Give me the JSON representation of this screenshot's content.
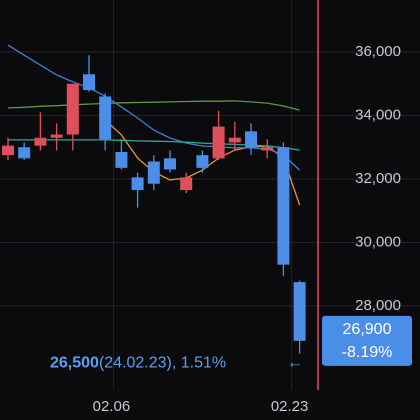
{
  "chart_data": {
    "type": "candlestick",
    "categories": [
      null,
      null,
      null,
      null,
      null,
      null,
      null,
      "02.06",
      null,
      null,
      null,
      null,
      null,
      null,
      null,
      null,
      null,
      null,
      "02.23"
    ],
    "open": [
      32750,
      33000,
      33050,
      33300,
      33400,
      35300,
      34600,
      32850,
      32050,
      32550,
      32650,
      31650,
      32750,
      32650,
      33150,
      33500,
      32900,
      33000,
      28750
    ],
    "close": [
      33050,
      32650,
      33300,
      33400,
      35000,
      34800,
      33250,
      32350,
      31650,
      31850,
      32300,
      32050,
      32350,
      33650,
      33300,
      33000,
      33000,
      29300,
      26900
    ],
    "high": [
      33300,
      33150,
      34100,
      33750,
      35000,
      35900,
      34700,
      33250,
      32200,
      32750,
      32900,
      32200,
      32900,
      34150,
      33800,
      33750,
      33250,
      33150,
      28800
    ],
    "low": [
      32600,
      32600,
      32900,
      32900,
      32900,
      34750,
      32900,
      32300,
      31100,
      31650,
      32200,
      31550,
      32200,
      32600,
      32900,
      32750,
      32650,
      28950,
      26500
    ],
    "up_color": "#e0505c",
    "down_color": "#4a8ee8",
    "moving_averages": [
      {
        "color": "#e8943a",
        "values": [
          null,
          null,
          null,
          null,
          null,
          null,
          33860,
          33390,
          32660,
          32220,
          31970,
          32030,
          32280,
          32660,
          32910,
          33010,
          33040,
          32660,
          31180
        ]
      },
      {
        "color": "#3f7fd8",
        "values": [
          36220,
          35900,
          35590,
          35280,
          35060,
          34870,
          34610,
          34270,
          33920,
          33540,
          33290,
          33130,
          33040,
          33010,
          32980,
          32980,
          32950,
          32760,
          32280
        ]
      },
      {
        "color": "#5a9a3c",
        "values": [
          34240,
          34260,
          34290,
          34310,
          34340,
          34360,
          34380,
          34400,
          34410,
          34420,
          34430,
          34440,
          34450,
          34450,
          34460,
          34430,
          34390,
          34300,
          34170
        ]
      },
      {
        "color": "#2fa89a",
        "values": [
          33230,
          33230,
          33230,
          33230,
          33230,
          33230,
          33230,
          33220,
          33200,
          33190,
          33180,
          33160,
          33130,
          33110,
          33090,
          33070,
          33040,
          32990,
          32910
        ]
      }
    ],
    "ylim": [
      25350,
      37640
    ],
    "yticks": [
      {
        "value": 28000,
        "label": "28,000"
      },
      {
        "value": 30000,
        "label": "30,000"
      },
      {
        "value": 32000,
        "label": "32,000"
      },
      {
        "value": 34000,
        "label": "34,000"
      },
      {
        "value": 36000,
        "label": "36,000"
      }
    ],
    "grid": true,
    "current": {
      "value": 26900,
      "label": "26,900",
      "change": -8.19,
      "change_label": "-8.19%"
    },
    "low_annotation": {
      "value": 26500,
      "label": "26,500",
      "text": "(24.02.23), 1.51%",
      "arrow": "←"
    }
  }
}
